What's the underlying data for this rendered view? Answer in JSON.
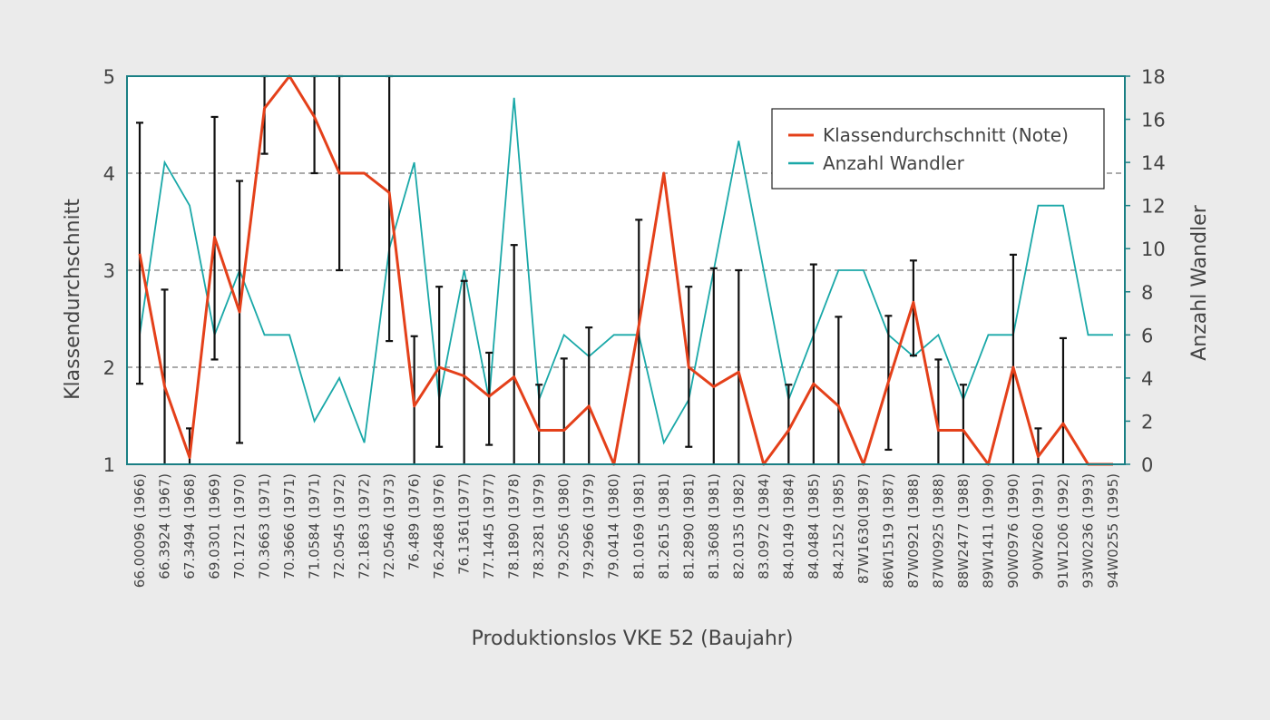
{
  "colors": {
    "background": "#ebebeb",
    "plot_background": "#ffffff",
    "grade_line": "#e4401a",
    "count_line": "#1aa8a8",
    "error_bar": "#111111",
    "axis_border": "#1a7f84",
    "grid": "#555555"
  },
  "chart_data": {
    "type": "line",
    "xlabel": "Produktionslos VKE 52 (Baujahr)",
    "ylabel_left": "Klassendurchschnitt",
    "ylabel_right": "Anzahl Wandler",
    "ylim_left": [
      1,
      5
    ],
    "ylim_right": [
      0,
      18
    ],
    "yticks_left": [
      "1",
      "2",
      "3",
      "4",
      "5"
    ],
    "yticks_right": [
      "0",
      "2",
      "4",
      "6",
      "8",
      "10",
      "12",
      "14",
      "16",
      "18"
    ],
    "grid": "horizontal dashed at left-axis ticks 2, 3, 4",
    "legend_position": "top-right",
    "categories": [
      "66.00096 (1966)",
      "66.3924 (1967)",
      "67.3494 (1968)",
      "69.0301 (1969)",
      "70.1721 (1970)",
      "70.3663 (1971)",
      "70.3666 (1971)",
      "71.0584 (1971)",
      "72.0545 (1972)",
      "72.1863 (1972)",
      "72.0546 (1973)",
      "76.489 (1976)",
      "76.2468 (1976)",
      "76.1361(1977)",
      "77.1445 (1977)",
      "78.1890 (1978)",
      "78.3281 (1979)",
      "79.2056 (1980)",
      "79.2966 (1979)",
      "79.0414 (1980)",
      "81.0169 (1981)",
      "81.2615 (1981)",
      "81.2890 (1981)",
      "81.3608 (1981)",
      "82.0135 (1982)",
      "83.0972 (1984)",
      "84.0149 (1984)",
      "84.0484 (1985)",
      "84.2152 (1985)",
      "87W1630(1987)",
      "86W1519 (1987)",
      "87W0921 (1988)",
      "87W0925 (1988)",
      "88W2477 (1988)",
      "89W1411 (1990)",
      "90W0976 (1990)",
      "90W260 (1991)",
      "91W1206 (1992)",
      "93W0236 (1993)",
      "94W0255 (1995)"
    ],
    "series": [
      {
        "name": "Klassendurchschnitt (Note)",
        "axis": "left",
        "values": [
          3.17,
          1.8,
          1.07,
          3.34,
          2.57,
          4.67,
          5.0,
          4.58,
          4.0,
          4.0,
          3.8,
          1.6,
          2.0,
          1.91,
          1.7,
          1.9,
          1.35,
          1.35,
          1.6,
          1.0,
          2.43,
          4.0,
          2.0,
          1.8,
          1.95,
          1.0,
          1.35,
          1.83,
          1.6,
          1.0,
          1.85,
          2.67,
          1.35,
          1.35,
          1.0,
          2.0,
          1.08,
          1.42,
          1.0,
          1.0
        ],
        "error_low": [
          1.83,
          1.0,
          1.0,
          2.08,
          1.22,
          4.2,
          5.0,
          4.0,
          3.0,
          4.0,
          2.27,
          1.0,
          1.18,
          1.0,
          1.2,
          1.0,
          1.0,
          1.0,
          1.0,
          1.0,
          1.0,
          4.0,
          1.18,
          1.0,
          1.0,
          1.0,
          1.0,
          1.0,
          1.0,
          1.0,
          1.15,
          2.12,
          1.0,
          1.0,
          1.0,
          1.0,
          1.0,
          1.0,
          1.0,
          1.0
        ],
        "error_high": [
          4.52,
          2.8,
          1.37,
          4.58,
          3.92,
          5.0,
          5.0,
          5.0,
          5.0,
          4.0,
          5.0,
          2.32,
          2.83,
          2.89,
          2.15,
          3.26,
          1.82,
          2.09,
          2.41,
          1.0,
          3.52,
          4.0,
          2.83,
          3.02,
          3.0,
          1.0,
          1.82,
          3.06,
          2.52,
          1.0,
          2.53,
          3.1,
          2.08,
          1.82,
          1.0,
          3.16,
          1.37,
          2.3,
          1.0,
          1.0
        ]
      },
      {
        "name": "Anzahl Wandler",
        "axis": "right",
        "values": [
          6,
          14,
          12,
          6,
          9,
          6,
          6,
          2,
          4,
          1,
          10,
          14,
          3,
          9,
          3,
          17,
          3,
          6,
          5,
          6,
          6,
          1,
          3,
          9,
          15,
          9,
          3,
          6,
          9,
          9,
          6,
          5,
          6,
          3,
          6,
          6,
          12,
          12,
          6,
          6
        ]
      }
    ]
  }
}
